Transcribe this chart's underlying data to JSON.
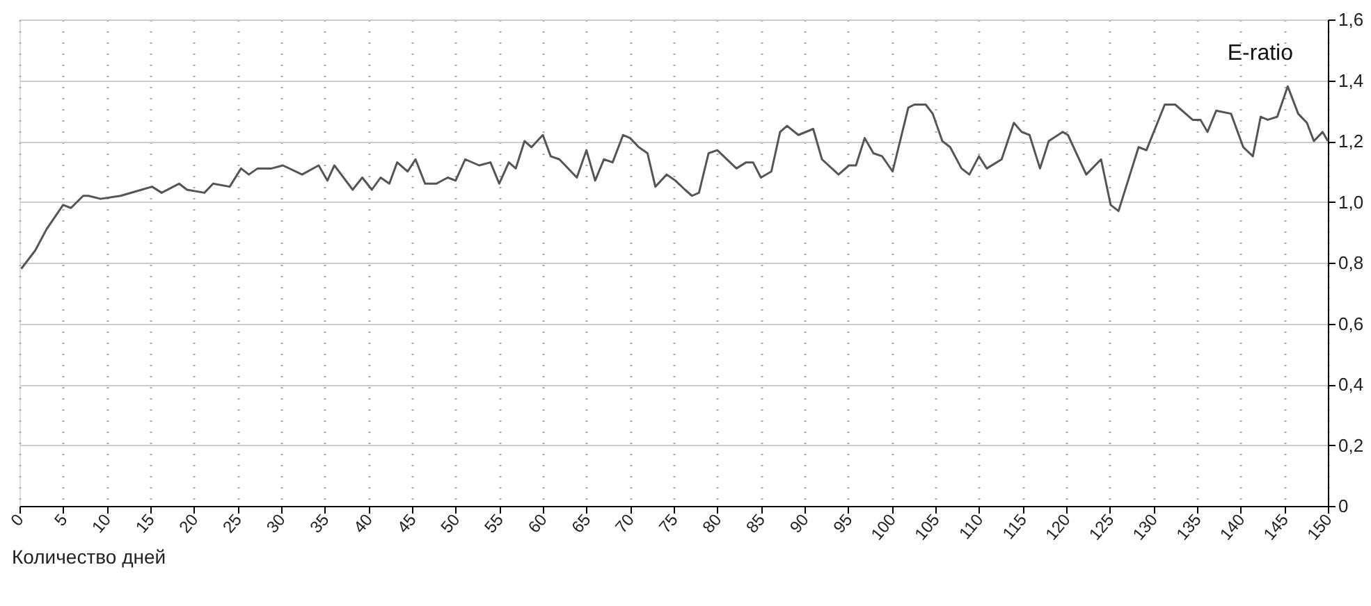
{
  "chart_data": {
    "type": "line",
    "xlabel": "Количество дней",
    "x": [
      0.2,
      1.8,
      3.1,
      5,
      5.9,
      7.3,
      7.9,
      9.3,
      11.6,
      14,
      15.2,
      16.3,
      18.3,
      19.2,
      21.2,
      22.2,
      24.1,
      25.4,
      26.3,
      27.3,
      28.9,
      30.2,
      32.4,
      34.3,
      35.3,
      36.1,
      38.2,
      39.3,
      40.4,
      41.4,
      42.4,
      43.3,
      44.5,
      45.4,
      46.5,
      47.8,
      49.1,
      50,
      51.1,
      52.7,
      54,
      55,
      56.1,
      56.9,
      57.9,
      58.7,
      60,
      60.9,
      61.9,
      63.9,
      65,
      66,
      67,
      68,
      69.2,
      70,
      71,
      72,
      72.9,
      74.2,
      75.2,
      76.3,
      77.1,
      77.9,
      79,
      80,
      82.2,
      83.3,
      84.1,
      85,
      86.2,
      87.2,
      88,
      89.3,
      91,
      92,
      93.9,
      95.1,
      95.9,
      96.9,
      97.9,
      98.9,
      100.1,
      101.9,
      102.6,
      103.9,
      104.7,
      105.8,
      106.7,
      108,
      108.9,
      110,
      110.9,
      112.6,
      114,
      114.9,
      115.8,
      117,
      118,
      119.6,
      120.2,
      122.3,
      124,
      125.1,
      126,
      128.3,
      129.2,
      131.3,
      132.5,
      134.5,
      135.4,
      136.2,
      137.2,
      138.9,
      140.3,
      141.4,
      142.3,
      143.1,
      144.2,
      145.4,
      146.6,
      147.6,
      148.4,
      149.4,
      150
    ],
    "series": [
      {
        "name": "E-ratio",
        "color": "#555555",
        "values": [
          0.78,
          0.84,
          0.91,
          0.99,
          0.98,
          1.02,
          1.02,
          1.01,
          1.02,
          1.04,
          1.05,
          1.03,
          1.06,
          1.04,
          1.03,
          1.06,
          1.05,
          1.11,
          1.09,
          1.11,
          1.11,
          1.12,
          1.09,
          1.12,
          1.07,
          1.12,
          1.04,
          1.08,
          1.04,
          1.08,
          1.06,
          1.13,
          1.1,
          1.14,
          1.06,
          1.06,
          1.08,
          1.07,
          1.14,
          1.12,
          1.13,
          1.06,
          1.13,
          1.11,
          1.2,
          1.18,
          1.22,
          1.15,
          1.14,
          1.08,
          1.17,
          1.07,
          1.14,
          1.13,
          1.22,
          1.21,
          1.18,
          1.16,
          1.05,
          1.09,
          1.07,
          1.04,
          1.02,
          1.03,
          1.16,
          1.17,
          1.11,
          1.13,
          1.13,
          1.08,
          1.1,
          1.23,
          1.25,
          1.22,
          1.24,
          1.14,
          1.09,
          1.12,
          1.12,
          1.21,
          1.16,
          1.15,
          1.1,
          1.31,
          1.32,
          1.32,
          1.29,
          1.2,
          1.18,
          1.11,
          1.09,
          1.15,
          1.11,
          1.14,
          1.26,
          1.23,
          1.22,
          1.11,
          1.2,
          1.23,
          1.22,
          1.09,
          1.14,
          0.99,
          0.97,
          1.18,
          1.17,
          1.32,
          1.32,
          1.27,
          1.27,
          1.23,
          1.3,
          1.29,
          1.18,
          1.15,
          1.28,
          1.27,
          1.28,
          1.38,
          1.29,
          1.26,
          1.2,
          1.23,
          1.2
        ]
      }
    ],
    "xlim": [
      0,
      150
    ],
    "xticks": [
      0,
      5,
      10,
      15,
      20,
      25,
      30,
      35,
      40,
      45,
      50,
      55,
      60,
      65,
      70,
      75,
      80,
      85,
      90,
      95,
      100,
      105,
      110,
      115,
      120,
      125,
      130,
      135,
      140,
      145,
      150
    ],
    "ylim": [
      0,
      1.6
    ],
    "yticks": [
      0,
      {
        "value": 0.2,
        "label": "0,2"
      },
      {
        "value": 0.4,
        "label": "0,4"
      },
      {
        "value": 0.6,
        "label": "0,6"
      },
      {
        "value": 0.8,
        "label": "0,8"
      },
      {
        "value": 1.0,
        "label": "1,0"
      },
      {
        "value": 1.2,
        "label": "1,2"
      },
      {
        "value": 1.4,
        "label": "1,4"
      },
      {
        "value": 1.6,
        "label": "1,6"
      }
    ],
    "grid": true,
    "marker": "none",
    "line_style": "solid"
  }
}
